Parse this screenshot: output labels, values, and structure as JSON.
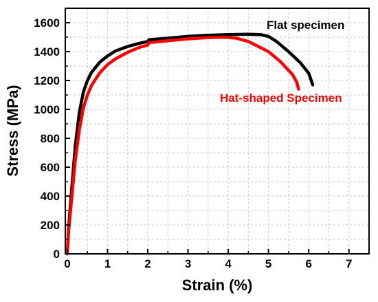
{
  "chart_data": {
    "type": "line",
    "xlabel": "Strain (%)",
    "ylabel": "Stress (MPa)",
    "xlim": [
      -0.05,
      7.5
    ],
    "ylim": [
      0,
      1700
    ],
    "x_ticks": [
      0,
      1,
      2,
      3,
      4,
      5,
      6,
      7
    ],
    "y_ticks": [
      0,
      200,
      400,
      600,
      800,
      1000,
      1200,
      1400,
      1600
    ],
    "grid": true,
    "series": [
      {
        "name": "Flat specimen",
        "color": "#000000",
        "points": [
          [
            0,
            0
          ],
          [
            0.03,
            170
          ],
          [
            0.1,
            420
          ],
          [
            0.2,
            750
          ],
          [
            0.3,
            980
          ],
          [
            0.4,
            1120
          ],
          [
            0.5,
            1200
          ],
          [
            0.6,
            1255
          ],
          [
            0.8,
            1325
          ],
          [
            1.0,
            1370
          ],
          [
            1.2,
            1405
          ],
          [
            1.5,
            1435
          ],
          [
            1.8,
            1458
          ],
          [
            2.0,
            1470
          ],
          [
            2.03,
            1482
          ],
          [
            2.5,
            1493
          ],
          [
            3.0,
            1505
          ],
          [
            3.5,
            1513
          ],
          [
            4.0,
            1518
          ],
          [
            4.5,
            1520
          ],
          [
            4.8,
            1518
          ],
          [
            5.0,
            1505
          ],
          [
            5.2,
            1470
          ],
          [
            5.5,
            1400
          ],
          [
            5.8,
            1320
          ],
          [
            6.0,
            1250
          ],
          [
            6.05,
            1210
          ],
          [
            6.1,
            1170
          ]
        ]
      },
      {
        "name": "Hat-shaped Specimen",
        "color": "#ff0000",
        "points": [
          [
            0,
            0
          ],
          [
            0.03,
            150
          ],
          [
            0.1,
            360
          ],
          [
            0.2,
            650
          ],
          [
            0.3,
            860
          ],
          [
            0.4,
            1010
          ],
          [
            0.5,
            1100
          ],
          [
            0.6,
            1165
          ],
          [
            0.8,
            1250
          ],
          [
            1.0,
            1310
          ],
          [
            1.2,
            1350
          ],
          [
            1.5,
            1395
          ],
          [
            1.8,
            1430
          ],
          [
            2.0,
            1445
          ],
          [
            2.03,
            1462
          ],
          [
            2.5,
            1475
          ],
          [
            3.0,
            1488
          ],
          [
            3.5,
            1497
          ],
          [
            3.9,
            1500
          ],
          [
            4.2,
            1493
          ],
          [
            4.5,
            1470
          ],
          [
            5.0,
            1400
          ],
          [
            5.3,
            1330
          ],
          [
            5.6,
            1240
          ],
          [
            5.7,
            1190
          ],
          [
            5.75,
            1140
          ]
        ]
      }
    ]
  }
}
